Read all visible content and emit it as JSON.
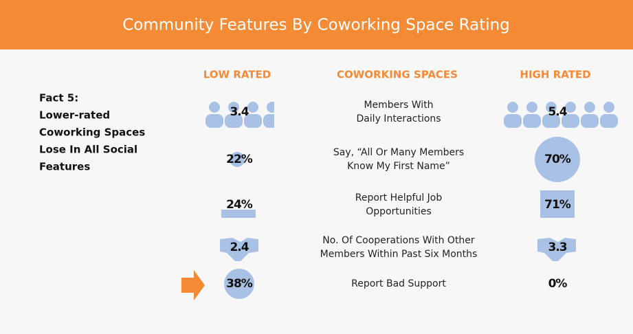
{
  "header": {
    "title": "Community Features By Coworking Space Rating"
  },
  "columns": [
    "LOW RATED",
    "COWORKING SPACES",
    "HIGH RATED"
  ],
  "fact": [
    "Fact 5:",
    "Lower-rated",
    "Coworking Spaces",
    "Lose In All Social",
    "Features"
  ],
  "rows": [
    {
      "low": "3.4",
      "label": [
        "Members With",
        "Daily Interactions"
      ],
      "high": "5.4"
    },
    {
      "low": "22%",
      "label": [
        "Say, “All Or Many Members",
        "Know My First Name”"
      ],
      "high": "70%"
    },
    {
      "low": "24%",
      "label": [
        "Report Helpful Job",
        "Opportunities"
      ],
      "high": "71%"
    },
    {
      "low": "2.4",
      "label": [
        "No. Of Cooperations With Other",
        "Members Within Past Six Months"
      ],
      "high": "3.3"
    },
    {
      "low": "38%",
      "label": [
        "Report Bad Support"
      ],
      "high": "0%"
    }
  ]
}
